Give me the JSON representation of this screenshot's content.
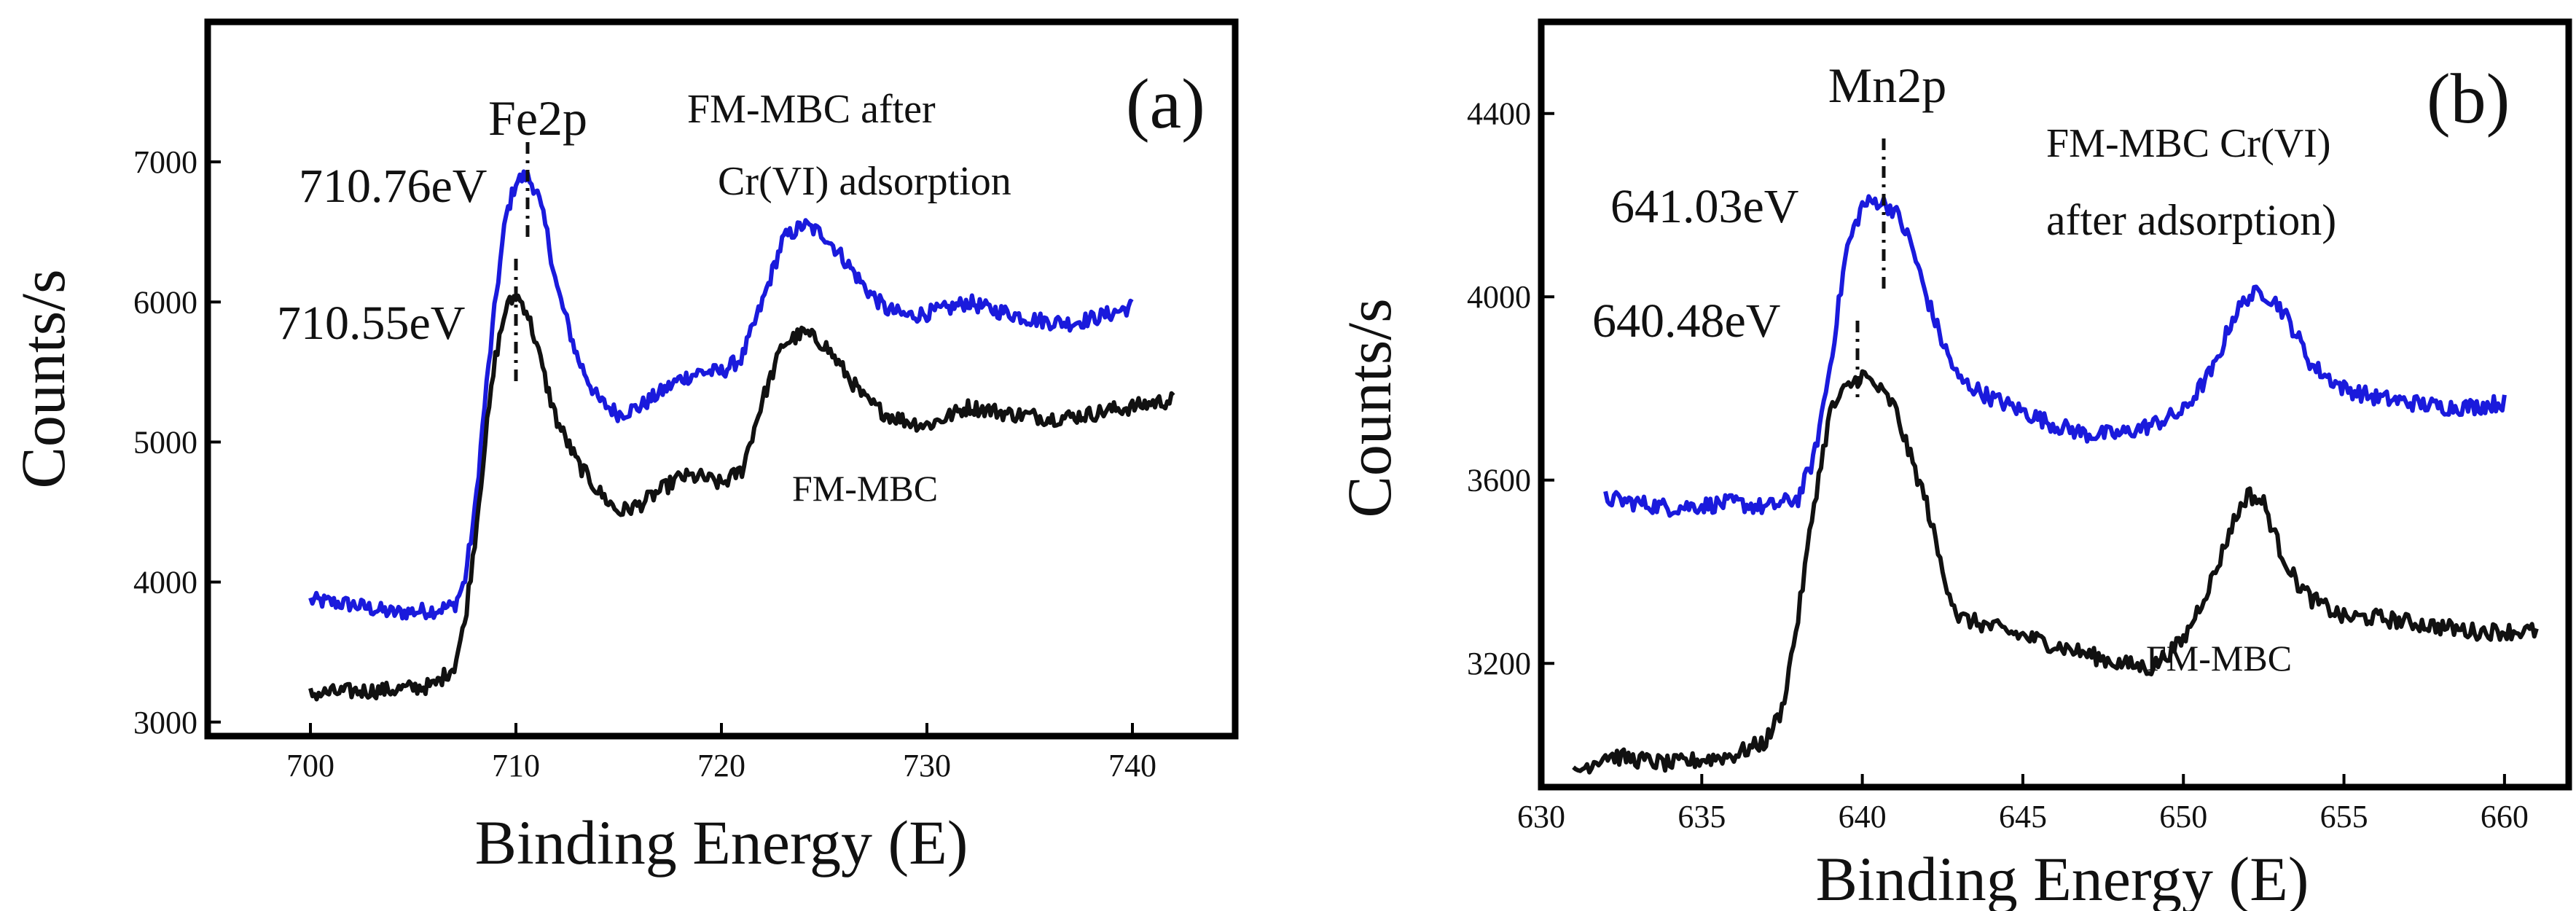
{
  "chart_data": [
    {
      "type": "line",
      "panel_label": "(a)",
      "title": "",
      "xlabel": "Binding Energy (E)",
      "ylabel": "Counts/s",
      "xlim": [
        695,
        745
      ],
      "ylim": [
        2900,
        8000
      ],
      "xticks": [
        700,
        710,
        720,
        730,
        740
      ],
      "yticks": [
        3000,
        4000,
        5000,
        6000,
        7000
      ],
      "xtick_labels": [
        "700",
        "710",
        "720",
        "730",
        "740"
      ],
      "ytick_labels": [
        "3000",
        "4000",
        "5000",
        "6000",
        "7000"
      ],
      "grid": false,
      "series": [
        {
          "name": "FM-MBC after Cr(VI) adsorption",
          "color": "#1a1adc",
          "x": [
            700,
            702,
            704,
            706,
            707,
            707.5,
            708,
            708.5,
            709,
            709.5,
            710,
            710.5,
            711,
            711.5,
            712,
            713,
            714,
            715,
            716,
            717,
            718,
            719,
            720,
            721,
            722,
            723,
            724,
            725,
            726,
            727,
            728,
            729,
            730,
            731,
            732,
            733,
            734,
            735,
            736,
            737,
            738,
            739,
            740
          ],
          "values": [
            3870,
            3840,
            3780,
            3800,
            3830,
            4000,
            4500,
            5300,
            6000,
            6600,
            6860,
            6900,
            6800,
            6500,
            6100,
            5600,
            5300,
            5200,
            5250,
            5350,
            5450,
            5500,
            5500,
            5600,
            6000,
            6450,
            6550,
            6480,
            6300,
            6100,
            5950,
            5900,
            5920,
            5950,
            6000,
            5950,
            5920,
            5880,
            5860,
            5850,
            5880,
            5920,
            5970
          ]
        },
        {
          "name": "FM-MBC",
          "color": "#111111",
          "x": [
            700,
            702,
            704,
            706,
            707,
            707.5,
            708,
            708.5,
            709,
            709.5,
            710,
            710.5,
            711,
            711.5,
            712,
            713,
            714,
            715,
            716,
            717,
            718,
            719,
            720,
            721,
            722,
            723,
            724,
            725,
            726,
            727,
            728,
            729,
            730,
            731,
            732,
            733,
            734,
            735,
            736,
            737,
            738,
            739,
            740,
            741,
            742
          ],
          "values": [
            3200,
            3220,
            3230,
            3260,
            3400,
            3700,
            4300,
            5000,
            5600,
            5950,
            6050,
            5950,
            5700,
            5400,
            5150,
            4850,
            4650,
            4500,
            4550,
            4650,
            4750,
            4750,
            4700,
            4800,
            5300,
            5700,
            5780,
            5700,
            5500,
            5300,
            5200,
            5150,
            5120,
            5180,
            5250,
            5230,
            5200,
            5190,
            5170,
            5180,
            5200,
            5230,
            5250,
            5280,
            5300
          ]
        }
      ],
      "annotations": [
        {
          "text": "Fe2p"
        },
        {
          "text": "710.76eV"
        },
        {
          "text": "710.55eV"
        },
        {
          "text": "FM-MBC after"
        },
        {
          "text": "Cr(VI) adsorption"
        },
        {
          "text": "FM-MBC"
        }
      ]
    },
    {
      "type": "line",
      "panel_label": "(b)",
      "title": "",
      "xlabel": "Binding Energy (E)",
      "ylabel": "Counts/s",
      "xlim": [
        630,
        662
      ],
      "ylim": [
        2930,
        4600
      ],
      "xticks": [
        630,
        635,
        640,
        645,
        650,
        655,
        660
      ],
      "yticks": [
        3200,
        3600,
        4000,
        4400
      ],
      "xtick_labels": [
        "630",
        "635",
        "640",
        "645",
        "650",
        "655",
        "660"
      ],
      "ytick_labels": [
        "3200",
        "3600",
        "4000",
        "4400"
      ],
      "grid": false,
      "series": [
        {
          "name": "FM-MBC Cr(VI) after adsorption)",
          "color": "#1a1adc",
          "x": [
            632,
            633,
            634,
            635,
            636,
            637,
            638,
            638.5,
            639,
            639.5,
            640,
            640.5,
            641,
            641.5,
            642,
            642.5,
            643,
            644,
            645,
            646,
            647,
            648,
            649,
            650,
            651,
            651.5,
            652,
            652.5,
            653,
            653.5,
            654,
            655,
            656,
            657,
            658,
            659,
            660
          ],
          "values": [
            3560,
            3550,
            3540,
            3545,
            3550,
            3540,
            3560,
            3650,
            3850,
            4100,
            4200,
            4210,
            4190,
            4120,
            4000,
            3900,
            3820,
            3780,
            3750,
            3720,
            3700,
            3700,
            3720,
            3750,
            3850,
            3950,
            4000,
            4010,
            3980,
            3920,
            3850,
            3800,
            3780,
            3770,
            3760,
            3760,
            3770
          ]
        },
        {
          "name": "FM-MBC",
          "color": "#111111",
          "x": [
            631,
            632,
            633,
            634,
            635,
            636,
            637,
            637.5,
            638,
            638.5,
            639,
            639.5,
            640,
            640.5,
            641,
            641.5,
            642,
            642.5,
            643,
            644,
            645,
            646,
            647,
            648,
            649,
            650,
            651,
            651.5,
            652,
            652.5,
            653,
            653.5,
            654,
            655,
            656,
            657,
            658,
            659,
            660,
            661
          ],
          "values": [
            2960,
            3000,
            2990,
            2980,
            2990,
            3000,
            3030,
            3100,
            3300,
            3550,
            3750,
            3800,
            3830,
            3800,
            3760,
            3650,
            3550,
            3400,
            3300,
            3280,
            3260,
            3240,
            3220,
            3200,
            3190,
            3250,
            3400,
            3500,
            3570,
            3550,
            3450,
            3380,
            3340,
            3300,
            3300,
            3290,
            3280,
            3270,
            3270,
            3270
          ]
        }
      ],
      "annotations": [
        {
          "text": "Mn2p"
        },
        {
          "text": "641.03eV"
        },
        {
          "text": "640.48eV"
        },
        {
          "text": "FM-MBC Cr(VI)"
        },
        {
          "text": "after adsorption)"
        },
        {
          "text": "FM-MBC"
        }
      ]
    }
  ]
}
